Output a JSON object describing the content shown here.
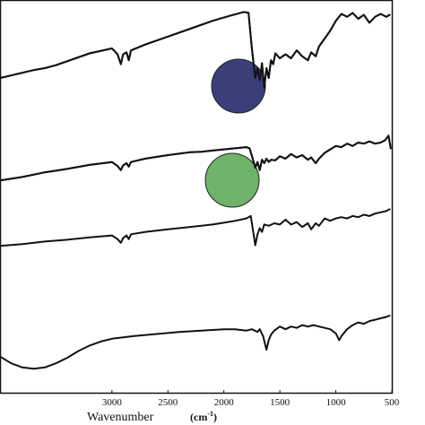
{
  "chart_data": {
    "type": "line",
    "title": "",
    "xlabel": "Wavenumber",
    "xlabel_unit": "(cm",
    "xlabel_unit_sup": "-1",
    "xlabel_unit_close": ")",
    "ylabel": "",
    "xlim": [
      4000,
      500
    ],
    "x_ticks": [
      3000,
      2500,
      2000,
      1500,
      1000,
      500
    ],
    "x_tick_labels": [
      "3000",
      "2500",
      "2000",
      "1500",
      "1000",
      "500"
    ],
    "highlight_colors": [
      "#3a3f7a",
      "#6fb36a"
    ],
    "series": [
      {
        "values": [
          [
            4000,
            0.3
          ],
          [
            3700,
            0.38
          ],
          [
            3600,
            0.4
          ],
          [
            3500,
            0.43
          ],
          [
            3400,
            0.47
          ],
          [
            3200,
            0.55
          ],
          [
            3000,
            0.6
          ],
          [
            2950,
            0.54
          ],
          [
            2920,
            0.44
          ],
          [
            2900,
            0.54
          ],
          [
            2870,
            0.56
          ],
          [
            2850,
            0.48
          ],
          [
            2830,
            0.58
          ],
          [
            2700,
            0.64
          ],
          [
            2500,
            0.72
          ],
          [
            2300,
            0.8
          ],
          [
            2100,
            0.88
          ],
          [
            1950,
            0.93
          ],
          [
            1820,
            0.97
          ],
          [
            1780,
            0.96
          ],
          [
            1750,
            0.6
          ],
          [
            1720,
            0.3
          ],
          [
            1700,
            0.4
          ],
          [
            1680,
            0.28
          ],
          [
            1660,
            0.45
          ],
          [
            1640,
            0.2
          ],
          [
            1620,
            0.4
          ],
          [
            1600,
            0.3
          ],
          [
            1580,
            0.48
          ],
          [
            1560,
            0.44
          ],
          [
            1540,
            0.55
          ],
          [
            1500,
            0.5
          ],
          [
            1450,
            0.54
          ],
          [
            1400,
            0.5
          ],
          [
            1350,
            0.58
          ],
          [
            1300,
            0.52
          ],
          [
            1250,
            0.48
          ],
          [
            1220,
            0.56
          ],
          [
            1180,
            0.52
          ],
          [
            1150,
            0.62
          ],
          [
            1100,
            0.7
          ],
          [
            1050,
            0.78
          ],
          [
            1000,
            0.88
          ],
          [
            950,
            0.95
          ],
          [
            900,
            0.92
          ],
          [
            850,
            0.96
          ],
          [
            800,
            0.9
          ],
          [
            750,
            0.94
          ],
          [
            700,
            0.86
          ],
          [
            650,
            0.92
          ],
          [
            600,
            0.95
          ],
          [
            550,
            0.92
          ],
          [
            520,
            0.94
          ]
        ]
      },
      {
        "values": [
          [
            4000,
            0.2
          ],
          [
            3800,
            0.26
          ],
          [
            3600,
            0.34
          ],
          [
            3400,
            0.4
          ],
          [
            3200,
            0.47
          ],
          [
            3000,
            0.52
          ],
          [
            2950,
            0.45
          ],
          [
            2920,
            0.38
          ],
          [
            2900,
            0.46
          ],
          [
            2870,
            0.5
          ],
          [
            2850,
            0.44
          ],
          [
            2830,
            0.52
          ],
          [
            2700,
            0.58
          ],
          [
            2500,
            0.64
          ],
          [
            2300,
            0.69
          ],
          [
            2200,
            0.7
          ],
          [
            2100,
            0.72
          ],
          [
            2000,
            0.74
          ],
          [
            1900,
            0.76
          ],
          [
            1800,
            0.78
          ],
          [
            1770,
            0.76
          ],
          [
            1740,
            0.56
          ],
          [
            1720,
            0.42
          ],
          [
            1700,
            0.52
          ],
          [
            1680,
            0.38
          ],
          [
            1660,
            0.56
          ],
          [
            1640,
            0.5
          ],
          [
            1620,
            0.58
          ],
          [
            1600,
            0.52
          ],
          [
            1580,
            0.56
          ],
          [
            1540,
            0.55
          ],
          [
            1500,
            0.62
          ],
          [
            1450,
            0.58
          ],
          [
            1400,
            0.66
          ],
          [
            1350,
            0.6
          ],
          [
            1300,
            0.64
          ],
          [
            1250,
            0.56
          ],
          [
            1220,
            0.6
          ],
          [
            1180,
            0.5
          ],
          [
            1150,
            0.58
          ],
          [
            1100,
            0.68
          ],
          [
            1050,
            0.74
          ],
          [
            1000,
            0.8
          ],
          [
            950,
            0.78
          ],
          [
            900,
            0.84
          ],
          [
            850,
            0.8
          ],
          [
            800,
            0.86
          ],
          [
            750,
            0.84
          ],
          [
            700,
            0.88
          ],
          [
            650,
            0.84
          ],
          [
            600,
            0.86
          ],
          [
            560,
            0.9
          ],
          [
            530,
            0.98
          ],
          [
            510,
            0.76
          ]
        ]
      },
      {
        "values": [
          [
            4000,
            0.35
          ],
          [
            3800,
            0.38
          ],
          [
            3600,
            0.42
          ],
          [
            3400,
            0.45
          ],
          [
            3200,
            0.49
          ],
          [
            3000,
            0.52
          ],
          [
            2950,
            0.46
          ],
          [
            2920,
            0.4
          ],
          [
            2900,
            0.48
          ],
          [
            2870,
            0.52
          ],
          [
            2850,
            0.46
          ],
          [
            2830,
            0.54
          ],
          [
            2700,
            0.58
          ],
          [
            2500,
            0.62
          ],
          [
            2300,
            0.66
          ],
          [
            2100,
            0.7
          ],
          [
            2000,
            0.73
          ],
          [
            1900,
            0.76
          ],
          [
            1800,
            0.8
          ],
          [
            1760,
            0.84
          ],
          [
            1740,
            0.6
          ],
          [
            1720,
            0.36
          ],
          [
            1700,
            0.54
          ],
          [
            1680,
            0.64
          ],
          [
            1660,
            0.58
          ],
          [
            1640,
            0.7
          ],
          [
            1600,
            0.68
          ],
          [
            1550,
            0.72
          ],
          [
            1500,
            0.7
          ],
          [
            1450,
            0.78
          ],
          [
            1400,
            0.7
          ],
          [
            1350,
            0.74
          ],
          [
            1300,
            0.66
          ],
          [
            1250,
            0.72
          ],
          [
            1220,
            0.62
          ],
          [
            1180,
            0.72
          ],
          [
            1150,
            0.68
          ],
          [
            1100,
            0.8
          ],
          [
            1050,
            0.76
          ],
          [
            1000,
            0.8
          ],
          [
            950,
            0.82
          ],
          [
            900,
            0.8
          ],
          [
            850,
            0.84
          ],
          [
            800,
            0.82
          ],
          [
            750,
            0.86
          ],
          [
            700,
            0.84
          ],
          [
            650,
            0.88
          ],
          [
            600,
            0.9
          ],
          [
            550,
            0.92
          ],
          [
            520,
            0.95
          ]
        ]
      },
      {
        "values": [
          [
            4000,
            0.4
          ],
          [
            3900,
            0.3
          ],
          [
            3800,
            0.24
          ],
          [
            3700,
            0.22
          ],
          [
            3600,
            0.24
          ],
          [
            3500,
            0.3
          ],
          [
            3400,
            0.38
          ],
          [
            3300,
            0.48
          ],
          [
            3200,
            0.56
          ],
          [
            3100,
            0.62
          ],
          [
            3000,
            0.66
          ],
          [
            2800,
            0.7
          ],
          [
            2600,
            0.73
          ],
          [
            2400,
            0.76
          ],
          [
            2200,
            0.78
          ],
          [
            2000,
            0.8
          ],
          [
            1900,
            0.8
          ],
          [
            1800,
            0.78
          ],
          [
            1750,
            0.8
          ],
          [
            1700,
            0.76
          ],
          [
            1680,
            0.8
          ],
          [
            1650,
            0.7
          ],
          [
            1620,
            0.5
          ],
          [
            1600,
            0.64
          ],
          [
            1580,
            0.72
          ],
          [
            1550,
            0.78
          ],
          [
            1500,
            0.84
          ],
          [
            1450,
            0.8
          ],
          [
            1400,
            0.84
          ],
          [
            1350,
            0.82
          ],
          [
            1300,
            0.86
          ],
          [
            1250,
            0.84
          ],
          [
            1200,
            0.86
          ],
          [
            1150,
            0.84
          ],
          [
            1100,
            0.82
          ],
          [
            1050,
            0.8
          ],
          [
            1000,
            0.74
          ],
          [
            970,
            0.64
          ],
          [
            950,
            0.7
          ],
          [
            900,
            0.8
          ],
          [
            850,
            0.86
          ],
          [
            800,
            0.9
          ],
          [
            750,
            0.88
          ],
          [
            700,
            0.92
          ],
          [
            650,
            0.94
          ],
          [
            600,
            0.96
          ],
          [
            550,
            0.98
          ],
          [
            520,
            1.0
          ]
        ]
      }
    ]
  }
}
